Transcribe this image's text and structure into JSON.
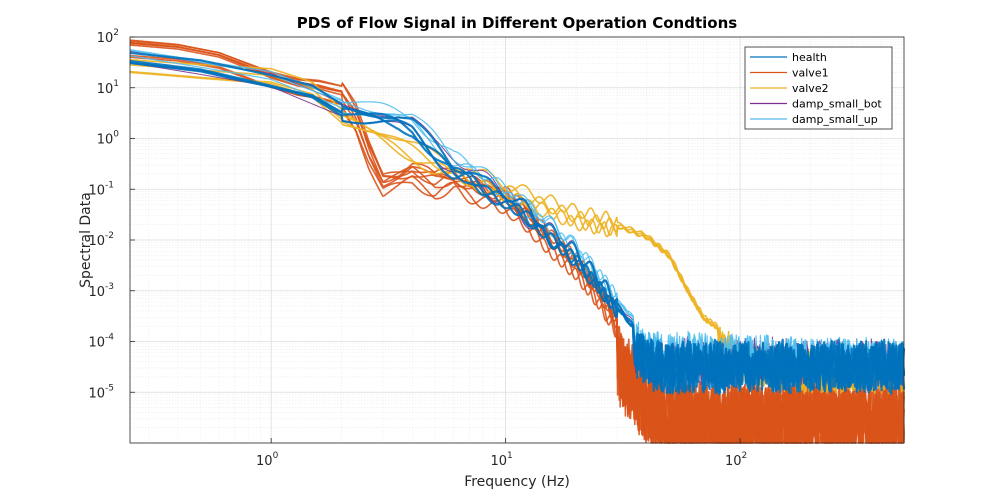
{
  "chart_data": {
    "type": "line",
    "title": "PDS of Flow Signal in Different Operation Condtions",
    "xlabel": "Frequency (Hz)",
    "ylabel": "Spectral Data",
    "xscale": "log",
    "yscale": "log",
    "xlim": [
      0.25,
      500
    ],
    "ylim": [
      1e-06,
      100
    ],
    "x_ticks": [
      {
        "base": "10",
        "exp": "0",
        "value": 1
      },
      {
        "base": "10",
        "exp": "1",
        "value": 10
      },
      {
        "base": "10",
        "exp": "2",
        "value": 100
      }
    ],
    "y_ticks": [
      {
        "base": "10",
        "exp": "2",
        "value": 100
      },
      {
        "base": "10",
        "exp": "1",
        "value": 10
      },
      {
        "base": "10",
        "exp": "0",
        "value": 1
      },
      {
        "base": "10",
        "exp": "-1",
        "value": 0.1
      },
      {
        "base": "10",
        "exp": "-2",
        "value": 0.01
      },
      {
        "base": "10",
        "exp": "-3",
        "value": 0.001
      },
      {
        "base": "10",
        "exp": "-4",
        "value": 0.0001
      },
      {
        "base": "10",
        "exp": "-5",
        "value": 1e-05
      }
    ],
    "grid": true,
    "minor_grid": true,
    "legend_position": "top-right",
    "series": [
      {
        "name": "health",
        "color": "#0072BD",
        "draw_color": "#0072BD",
        "noise_floor": 0.0001,
        "points": [
          [
            0.25,
            40
          ],
          [
            0.5,
            28
          ],
          [
            1.0,
            14
          ],
          [
            1.5,
            9
          ],
          [
            2.0,
            4
          ],
          [
            2.5,
            3.2
          ],
          [
            3.0,
            2.8
          ],
          [
            3.5,
            2.4
          ],
          [
            4.0,
            1.8
          ],
          [
            5.0,
            0.6
          ],
          [
            6.0,
            0.25
          ],
          [
            7.0,
            0.22
          ],
          [
            8.0,
            0.12
          ],
          [
            9.0,
            0.09
          ],
          [
            10.0,
            0.07
          ],
          [
            12.0,
            0.04
          ],
          [
            15.0,
            0.015
          ],
          [
            20.0,
            0.005
          ],
          [
            25.0,
            0.0015
          ],
          [
            30.0,
            0.0005
          ],
          [
            35.0,
            0.0002
          ],
          [
            40.0,
            0.00012
          ],
          [
            50.0,
            0.0001
          ],
          [
            100.0,
            0.0001
          ],
          [
            500.0,
            0.0001
          ]
        ]
      },
      {
        "name": "valve1",
        "color": "#D95319",
        "draw_color": "#D95319",
        "noise_floor": 1.5e-05,
        "points": [
          [
            0.25,
            60
          ],
          [
            0.4,
            50
          ],
          [
            0.6,
            35
          ],
          [
            1.0,
            14
          ],
          [
            1.3,
            10
          ],
          [
            1.6,
            9
          ],
          [
            2.0,
            7
          ],
          [
            2.3,
            2.5
          ],
          [
            2.6,
            0.5
          ],
          [
            3.0,
            0.12
          ],
          [
            3.5,
            0.15
          ],
          [
            4.0,
            0.2
          ],
          [
            5.0,
            0.12
          ],
          [
            6.0,
            0.15
          ],
          [
            7.0,
            0.1
          ],
          [
            8.0,
            0.08
          ],
          [
            10.0,
            0.06
          ],
          [
            12.0,
            0.03
          ],
          [
            15.0,
            0.01
          ],
          [
            20.0,
            0.003
          ],
          [
            25.0,
            0.0008
          ],
          [
            30.0,
            0.0002
          ],
          [
            35.0,
            8e-05
          ],
          [
            40.0,
            3e-05
          ],
          [
            50.0,
            1.5e-05
          ],
          [
            100.0,
            1.5e-05
          ],
          [
            500.0,
            1.5e-05
          ]
        ]
      },
      {
        "name": "valve2",
        "color": "#EDB120",
        "draw_color": "#EDB120",
        "noise_floor": 7e-05,
        "points": [
          [
            0.25,
            28
          ],
          [
            0.5,
            22
          ],
          [
            1.0,
            18
          ],
          [
            1.5,
            10
          ],
          [
            2.0,
            3
          ],
          [
            3.0,
            1.2
          ],
          [
            4.0,
            0.6
          ],
          [
            5.0,
            0.35
          ],
          [
            7.0,
            0.2
          ],
          [
            10.0,
            0.1
          ],
          [
            15.0,
            0.05
          ],
          [
            20.0,
            0.03
          ],
          [
            30.0,
            0.02
          ],
          [
            40.0,
            0.012
          ],
          [
            50.0,
            0.005
          ],
          [
            60.0,
            0.001
          ],
          [
            70.0,
            0.0003
          ],
          [
            100.0,
            0.0001
          ],
          [
            200.0,
            7e-05
          ],
          [
            500.0,
            7e-05
          ]
        ]
      },
      {
        "name": "damp_small_bot",
        "color": "#7E2F8E",
        "draw_color": "#7E2F8E",
        "noise_floor": 0.0001,
        "points": [
          [
            0.25,
            40
          ],
          [
            1.0,
            14
          ],
          [
            2.0,
            4
          ],
          [
            3.0,
            2.8
          ],
          [
            4.0,
            1.8
          ],
          [
            5.0,
            0.6
          ],
          [
            7.0,
            0.22
          ],
          [
            10.0,
            0.07
          ],
          [
            15.0,
            0.015
          ],
          [
            20.0,
            0.005
          ],
          [
            30.0,
            0.0005
          ],
          [
            40.0,
            0.00012
          ],
          [
            500.0,
            0.0001
          ]
        ]
      },
      {
        "name": "damp_small_up",
        "color": "#4DBEEE",
        "draw_color": "#4DBEEE",
        "noise_floor": 0.0001,
        "points": [
          [
            0.25,
            42
          ],
          [
            1.0,
            15
          ],
          [
            2.0,
            4.5
          ],
          [
            3.0,
            3
          ],
          [
            4.0,
            2
          ],
          [
            5.0,
            0.8
          ],
          [
            6.0,
            0.35
          ],
          [
            7.0,
            0.25
          ],
          [
            10.0,
            0.08
          ],
          [
            15.0,
            0.02
          ],
          [
            20.0,
            0.006
          ],
          [
            30.0,
            0.0006
          ],
          [
            40.0,
            0.00015
          ],
          [
            500.0,
            0.0001
          ]
        ]
      }
    ]
  }
}
